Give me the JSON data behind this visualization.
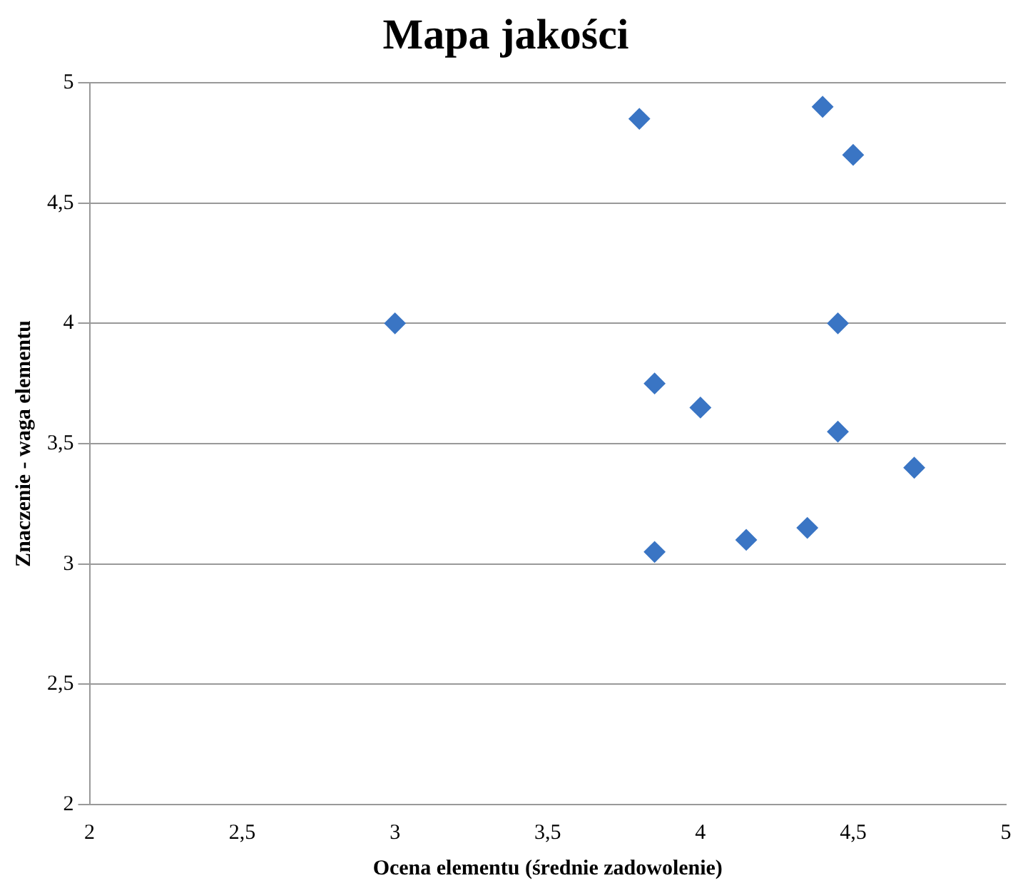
{
  "chart_data": {
    "type": "scatter",
    "title": "Mapa jakości",
    "xlabel": "Ocena elementu (średnie zadowolenie)",
    "ylabel": "Znaczenie - waga elementu",
    "series": [
      {
        "color": "#3a75c4",
        "x": [
          3,
          3.8,
          4.4,
          4.5,
          4.45,
          3.85,
          4,
          4.45,
          4.7,
          4.35,
          4.15,
          3.85
        ],
        "values": [
          4,
          4.85,
          4.9,
          4.7,
          4,
          3.75,
          3.65,
          3.55,
          3.4,
          3.15,
          3.1,
          3.05
        ]
      }
    ],
    "xlim": [
      2,
      5
    ],
    "ylim": [
      2,
      5
    ],
    "xticks": [
      2,
      {
        "value": 2.5,
        "label": "2,5"
      },
      3,
      {
        "value": 3.5,
        "label": "3,5"
      },
      4,
      {
        "value": 4.5,
        "label": "4,5"
      },
      5
    ],
    "yticks": [
      2,
      {
        "value": 2.5,
        "label": "2,5"
      },
      3,
      {
        "value": 3.5,
        "label": "3,5"
      },
      4,
      {
        "value": 4.5,
        "label": "4,5"
      },
      5
    ],
    "grid": "y",
    "marker": "diamond",
    "legend": false
  }
}
